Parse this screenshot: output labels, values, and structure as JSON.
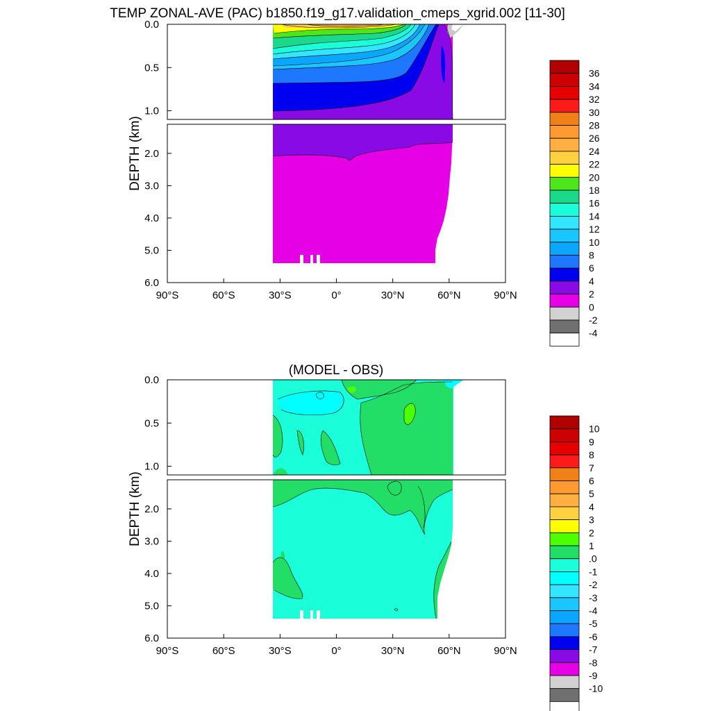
{
  "title": "TEMP ZONAL-AVE (PAC) b1850.f19_g17.validation_cmeps_xgrid.002 [11-30]",
  "chart_data": [
    {
      "type": "contour",
      "title": "TEMP ZONAL-AVE (PAC) b1850.f19_g17.validation_cmeps_xgrid.002 [11-30]",
      "ylabel": "DEPTH (km)",
      "xlabel": "",
      "x_ticks": [
        "90°S",
        "60°S",
        "30°S",
        "0°",
        "30°N",
        "60°N",
        "90°N"
      ],
      "x_values": [
        -90,
        -60,
        -30,
        0,
        30,
        60,
        90
      ],
      "y_ticks_upper": [
        "0.0",
        "0.5",
        "1.0"
      ],
      "y_ticks_lower": [
        "2.0",
        "3.0",
        "4.0",
        "5.0",
        "6.0"
      ],
      "xlim": [
        -90,
        90
      ],
      "ylim": [
        6.0,
        0.0
      ],
      "grid": false,
      "legend": "right",
      "colorbar_labels": [
        "36",
        "34",
        "32",
        "30",
        "28",
        "26",
        "24",
        "22",
        "20",
        "18",
        "16",
        "14",
        "12",
        "10",
        "8",
        "6",
        "4",
        "2",
        "0",
        "-2",
        "-4"
      ],
      "colorbar_colors": [
        "#b00000",
        "#cd0000",
        "#e60000",
        "#ff1a1a",
        "#f08018",
        "#ff9a30",
        "#ffb040",
        "#ffd040",
        "#ffff00",
        "#4de61a",
        "#1ad98a",
        "#1affd9",
        "#33e6ff",
        "#1ac6ff",
        "#0aa6ff",
        "#1e78ff",
        "#0000f0",
        "#8a0ae6",
        "#e600e6",
        "#d2d2d2",
        "#707070",
        "#ffffff"
      ]
    },
    {
      "type": "contour",
      "title": "(MODEL - OBS)",
      "ylabel": "DEPTH (km)",
      "xlabel": "",
      "x_ticks": [
        "90°S",
        "60°S",
        "30°S",
        "0°",
        "30°N",
        "60°N",
        "90°N"
      ],
      "x_values": [
        -90,
        -60,
        -30,
        0,
        30,
        60,
        90
      ],
      "y_ticks_upper": [
        "0.0",
        "0.5",
        "1.0"
      ],
      "y_ticks_lower": [
        "2.0",
        "3.0",
        "4.0",
        "5.0",
        "6.0"
      ],
      "xlim": [
        -90,
        90
      ],
      "ylim": [
        6.0,
        0.0
      ],
      "grid": false,
      "legend": "right",
      "colorbar_labels": [
        "10",
        "9",
        "8",
        "7",
        "6",
        "5",
        "4",
        "3",
        "2",
        "1",
        ".0",
        "-1",
        "-2",
        "-3",
        "-4",
        "-5",
        "-6",
        "-7",
        "-8",
        "-9",
        "-10"
      ],
      "colorbar_colors": [
        "#b00000",
        "#cd0000",
        "#e60000",
        "#ff1a1a",
        "#f08018",
        "#ff9a30",
        "#ffb040",
        "#ffd040",
        "#ffff00",
        "#4dff00",
        "#22dd66",
        "#1affd9",
        "#00ffff",
        "#33e6ff",
        "#1ac6ff",
        "#0aa6ff",
        "#1e78ff",
        "#0000f0",
        "#8a0ae6",
        "#e600e6",
        "#d2d2d2",
        "#707070",
        "#ffffff"
      ]
    }
  ]
}
